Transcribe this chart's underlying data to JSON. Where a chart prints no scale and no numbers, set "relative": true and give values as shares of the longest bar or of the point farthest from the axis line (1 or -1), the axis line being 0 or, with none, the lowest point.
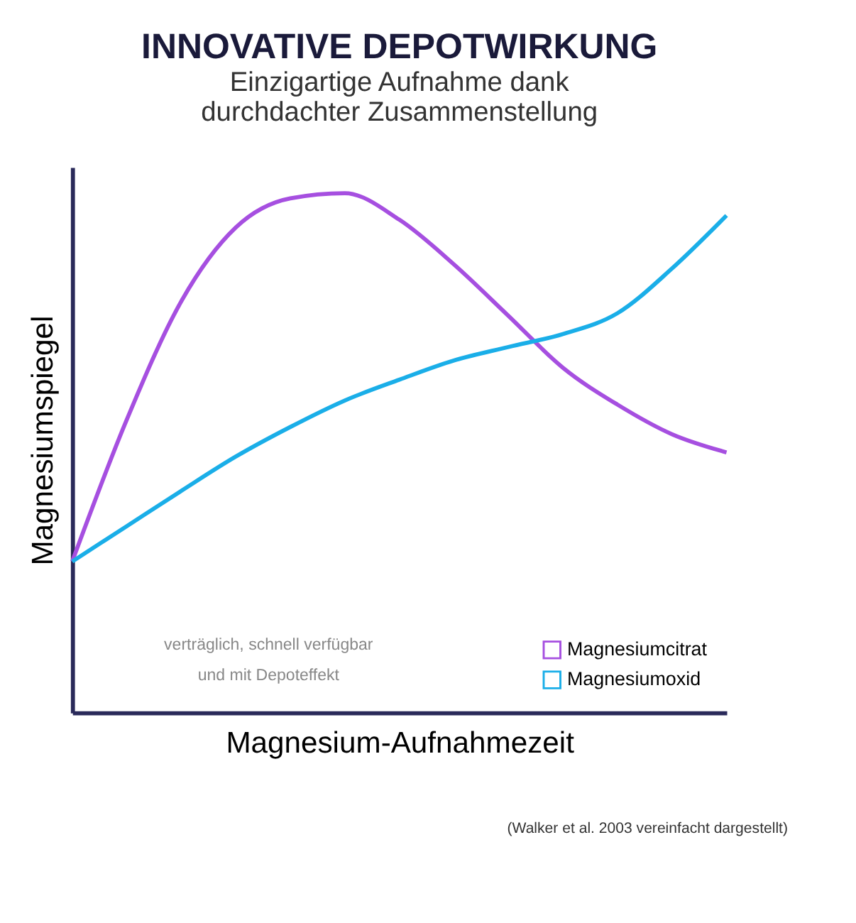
{
  "chart_data": {
    "type": "line",
    "title": "INNOVATIVE DEPOTWIRKUNG",
    "subtitle": "Einzigartige Aufnahme dank\ndurchdachter Zusammenstellung",
    "xlabel": "Magnesium-Aufnahmezeit",
    "ylabel": "Magnesiumspiegel",
    "relative": true,
    "categories": [
      null,
      null,
      null,
      null,
      null,
      null,
      null,
      null,
      null,
      null,
      null,
      null,
      null
    ],
    "series": [
      {
        "name": "Magnesiumcitrat",
        "color": "#a64fe0",
        "values": [
          0.291,
          0.564,
          0.792,
          0.934,
          0.99,
          1.0,
          0.949,
          0.863,
          0.764,
          0.664,
          0.593,
          0.536,
          0.501
        ]
      },
      {
        "name": "Magnesiumoxid",
        "color": "#1aaee8",
        "values": [
          0.291,
          0.359,
          0.427,
          0.493,
          0.55,
          0.601,
          0.641,
          0.678,
          0.704,
          0.729,
          0.769,
          0.855,
          0.957
        ]
      }
    ],
    "annotations": [
      "verträglich, schnell verfügbar\nund mit Depoteffekt",
      "(Walker et al. 2003  vereinfacht dargestellt)"
    ],
    "legend": "bottom right",
    "grid": false,
    "marker": "none",
    "line_style": "solid"
  }
}
